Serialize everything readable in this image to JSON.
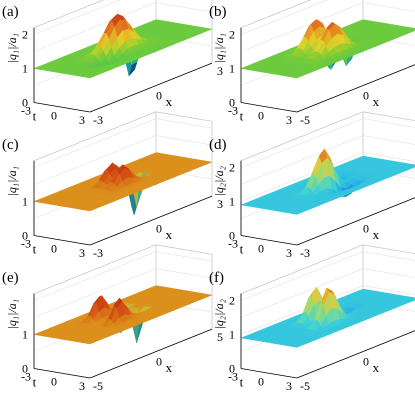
{
  "panels": [
    {
      "id": "a",
      "label": "(a)",
      "ylabel": "|q₁|/a₁",
      "zticks": [
        "0",
        "1",
        "2"
      ],
      "tticks": [
        "-3",
        "0",
        "3"
      ],
      "xticks": [
        "-3",
        "0",
        "3"
      ],
      "tlabel": "t",
      "xlabel": "x",
      "colormap": "green-red",
      "baseline": 1.0,
      "features": [
        {
          "u": 0.5,
          "v": 0.45,
          "amp": 1.2,
          "w": 0.1
        },
        {
          "u": 0.42,
          "v": 0.6,
          "amp": -1.3,
          "w": 0.05
        },
        {
          "u": 0.6,
          "v": 0.35,
          "amp": -0.3,
          "w": 0.1
        }
      ]
    },
    {
      "id": "b",
      "label": "(b)",
      "ylabel": "|q₁|/a₁",
      "zticks": [
        "0",
        "1",
        "2"
      ],
      "tticks": [
        "-3",
        "0",
        "3"
      ],
      "xticks": [
        "-5",
        "0",
        "5"
      ],
      "tlabel": "t",
      "xlabel": "x",
      "colormap": "green-red",
      "baseline": 1.0,
      "features": [
        {
          "u": 0.35,
          "v": 0.45,
          "amp": 0.9,
          "w": 0.08
        },
        {
          "u": 0.65,
          "v": 0.45,
          "amp": 0.9,
          "w": 0.08
        },
        {
          "u": 0.3,
          "v": 0.6,
          "amp": -1.1,
          "w": 0.04
        },
        {
          "u": 0.58,
          "v": 0.6,
          "amp": -0.8,
          "w": 0.04
        }
      ]
    },
    {
      "id": "c",
      "label": "(c)",
      "ylabel": "|q₁|/a₁",
      "zticks": [
        "0",
        "1"
      ],
      "tticks": [
        "-3",
        "0",
        "3"
      ],
      "xticks": [
        "-3",
        "0",
        "3"
      ],
      "tlabel": "t",
      "xlabel": "x",
      "colormap": "orange-red",
      "baseline": 1.0,
      "features": [
        {
          "u": 0.4,
          "v": 0.45,
          "amp": 0.6,
          "w": 0.06
        },
        {
          "u": 0.6,
          "v": 0.45,
          "amp": 0.6,
          "w": 0.06
        },
        {
          "u": 0.47,
          "v": 0.6,
          "amp": -1.0,
          "w": 0.03
        },
        {
          "u": 0.53,
          "v": 0.6,
          "amp": -1.0,
          "w": 0.03
        }
      ]
    },
    {
      "id": "d",
      "label": "(d)",
      "ylabel": "|q₂|/a₂",
      "zticks": [
        "0",
        "1",
        "2"
      ],
      "tticks": [
        "-3",
        "0",
        "3"
      ],
      "xticks": [
        "-3",
        "0",
        "3"
      ],
      "tlabel": "t",
      "xlabel": "x",
      "colormap": "blue-red",
      "baseline": 0.9,
      "features": [
        {
          "u": 0.5,
          "v": 0.45,
          "amp": 1.2,
          "w": 0.07
        },
        {
          "u": 0.35,
          "v": 0.55,
          "amp": -0.4,
          "w": 0.08
        },
        {
          "u": 0.65,
          "v": 0.55,
          "amp": -0.4,
          "w": 0.08
        }
      ]
    },
    {
      "id": "e",
      "label": "(e)",
      "ylabel": "|q₁|/a₁",
      "zticks": [
        "0",
        "1"
      ],
      "tticks": [
        "-3",
        "0",
        "3"
      ],
      "xticks": [
        "-5",
        "0",
        "5"
      ],
      "tlabel": "t",
      "xlabel": "x",
      "colormap": "orange-red",
      "baseline": 1.0,
      "features": [
        {
          "u": 0.3,
          "v": 0.4,
          "amp": 0.7,
          "w": 0.05
        },
        {
          "u": 0.65,
          "v": 0.4,
          "amp": 0.7,
          "w": 0.05
        },
        {
          "u": 0.25,
          "v": 0.6,
          "amp": -1.0,
          "w": 0.03
        },
        {
          "u": 0.55,
          "v": 0.6,
          "amp": -1.0,
          "w": 0.03
        },
        {
          "u": 0.4,
          "v": 0.55,
          "amp": -0.6,
          "w": 0.03
        }
      ]
    },
    {
      "id": "f",
      "label": "(f)",
      "ylabel": "|q₂|/a₂",
      "zticks": [
        "0",
        "1",
        "2"
      ],
      "tticks": [
        "-3",
        "0",
        "3"
      ],
      "xticks": [
        "-5",
        "0",
        "5"
      ],
      "tlabel": "t",
      "xlabel": "x",
      "colormap": "blue-red",
      "baseline": 0.9,
      "features": [
        {
          "u": 0.35,
          "v": 0.45,
          "amp": 1.0,
          "w": 0.06
        },
        {
          "u": 0.65,
          "v": 0.42,
          "amp": 1.1,
          "w": 0.06
        },
        {
          "u": 0.4,
          "v": 0.6,
          "amp": -0.4,
          "w": 0.07
        }
      ]
    }
  ]
}
